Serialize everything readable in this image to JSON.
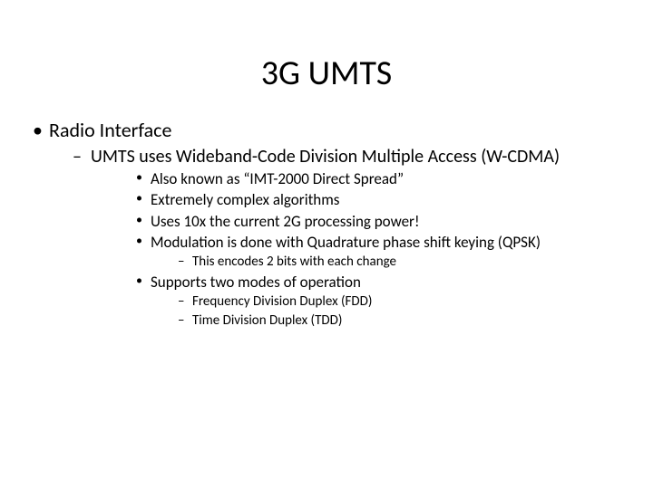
{
  "title": "3G UMTS",
  "bullets": {
    "l1_0": "Radio Interface",
    "l2_0": "UMTS uses Wideband-Code Division Multiple Access (W-CDMA)",
    "l3_0": "Also known as “IMT-2000 Direct Spread”",
    "l3_1": "Extremely complex algorithms",
    "l3_2": "Uses 10x the current 2G processing power!",
    "l3_3": "Modulation is done with Quadrature phase shift keying (QPSK)",
    "l4_0": "This encodes 2 bits with each change",
    "l3_4": "Supports two modes of operation",
    "l4_1": "Frequency Division Duplex (FDD)",
    "l4_2": "Time Division Duplex (TDD)"
  },
  "style": {
    "background_color": "#ffffff",
    "text_color": "#000000",
    "font_family": "Calibri",
    "title_fontsize": 38,
    "l1_fontsize": 22,
    "l2_fontsize": 20,
    "l3_fontsize": 17,
    "l4_fontsize": 15,
    "slide_width": 720,
    "slide_height": 540
  }
}
